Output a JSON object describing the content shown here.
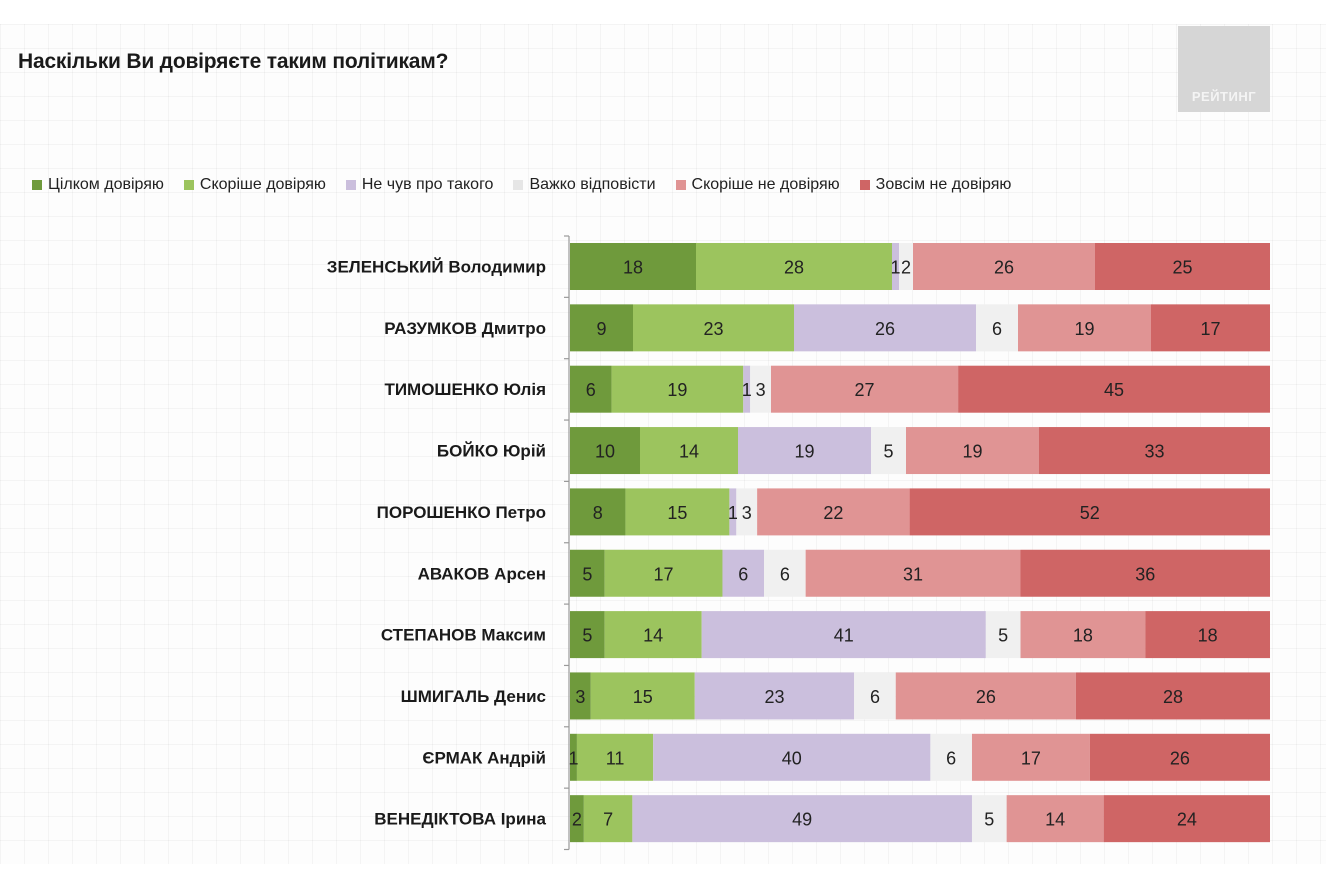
{
  "page": {
    "title": "Наскільки Ви довіряєте таким політикам?",
    "logo_text": "РЕЙТИНГ"
  },
  "chart_data": {
    "type": "bar",
    "orientation": "horizontal",
    "stacked": true,
    "title": "Наскільки Ви довіряєте таким політикам?",
    "xlabel": "",
    "ylabel": "",
    "xlim": [
      0,
      100
    ],
    "grid": false,
    "legend_position": "top",
    "categories": [
      "ЗЕЛЕНСЬКИЙ Володимир",
      "РАЗУМКОВ Дмитро",
      "ТИМОШЕНКО Юлія",
      "БОЙКО Юрій",
      "ПОРОШЕНКО Петро",
      "АВАКОВ Арсен",
      "СТЕПАНОВ Максим",
      "ШМИГАЛЬ Денис",
      "ЄРМАК Андрій",
      "ВЕНЕДІКТОВА Ірина"
    ],
    "series": [
      {
        "name": "Цілком довіряю",
        "color": "#6f9a3c",
        "values": [
          18,
          9,
          6,
          10,
          8,
          5,
          5,
          3,
          1,
          2
        ]
      },
      {
        "name": "Скоріше довіряю",
        "color": "#9cc45e",
        "values": [
          28,
          23,
          19,
          14,
          15,
          17,
          14,
          15,
          11,
          7
        ]
      },
      {
        "name": "Не чув про такого",
        "color": "#cbbfdd",
        "values": [
          1,
          26,
          1,
          19,
          1,
          6,
          41,
          23,
          40,
          49
        ]
      },
      {
        "name": "Важко відповісти",
        "color": "#f0f0f0",
        "values": [
          2,
          6,
          3,
          5,
          3,
          6,
          5,
          6,
          6,
          5
        ]
      },
      {
        "name": "Скоріше не довіряю",
        "color": "#e09494",
        "values": [
          26,
          19,
          27,
          19,
          22,
          31,
          18,
          26,
          17,
          14
        ]
      },
      {
        "name": "Зовсім не довіряю",
        "color": "#cf6565",
        "values": [
          25,
          17,
          45,
          33,
          52,
          36,
          18,
          28,
          26,
          24
        ]
      }
    ]
  }
}
